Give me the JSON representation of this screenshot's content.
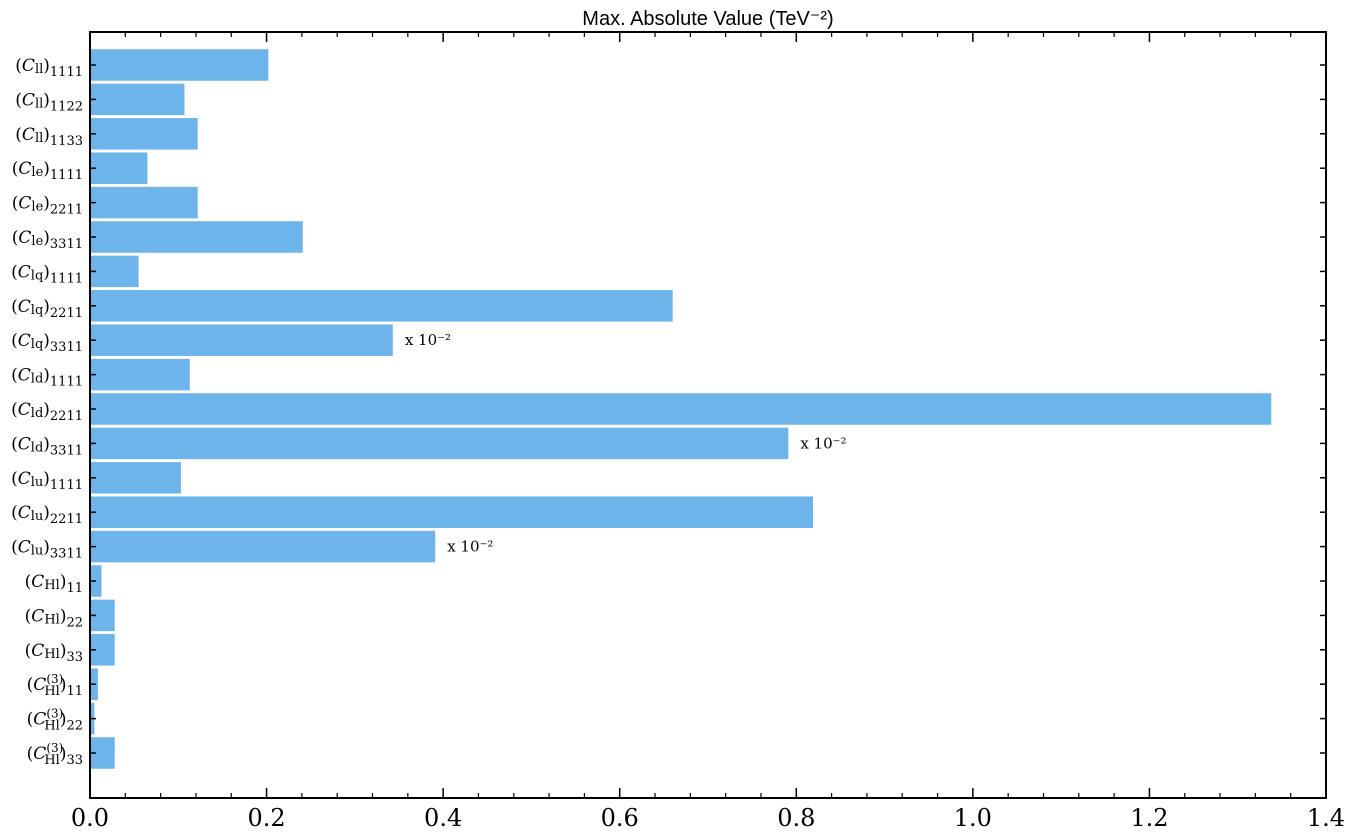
{
  "chart_data": {
    "type": "bar",
    "orientation": "horizontal",
    "title": "Max. Absolute Value (TeV⁻²)",
    "xlim": [
      0,
      1.4
    ],
    "xticks": [
      "0.0",
      "0.2",
      "0.4",
      "0.6",
      "0.8",
      "1.0",
      "1.2",
      "1.4"
    ],
    "xtick_values": [
      0.0,
      0.2,
      0.4,
      0.6,
      0.8,
      1.0,
      1.2,
      1.4
    ],
    "grid": false,
    "bar_color": "#6cb4ea",
    "categories": [
      "(C_ll)_1111",
      "(C_ll)_1122",
      "(C_ll)_1133",
      "(C_le)_1111",
      "(C_le)_2211",
      "(C_le)_3311",
      "(C_lq)_1111",
      "(C_lq)_2211",
      "(C_lq)_3311",
      "(C_ld)_1111",
      "(C_ld)_2211",
      "(C_ld)_3311",
      "(C_lu)_1111",
      "(C_lu)_2211",
      "(C_lu)_3311",
      "(C_Hl)_11",
      "(C_Hl)_22",
      "(C_Hl)_33",
      "(C_Hl^(3))_11",
      "(C_Hl^(3))_22",
      "(C_Hl^(3))_33"
    ],
    "label_parts": [
      {
        "sub": "ll",
        "sup": "",
        "idx": "1111"
      },
      {
        "sub": "ll",
        "sup": "",
        "idx": "1122"
      },
      {
        "sub": "ll",
        "sup": "",
        "idx": "1133"
      },
      {
        "sub": "le",
        "sup": "",
        "idx": "1111"
      },
      {
        "sub": "le",
        "sup": "",
        "idx": "2211"
      },
      {
        "sub": "le",
        "sup": "",
        "idx": "3311"
      },
      {
        "sub": "lq",
        "sup": "",
        "idx": "1111"
      },
      {
        "sub": "lq",
        "sup": "",
        "idx": "2211"
      },
      {
        "sub": "lq",
        "sup": "",
        "idx": "3311"
      },
      {
        "sub": "ld",
        "sup": "",
        "idx": "1111"
      },
      {
        "sub": "ld",
        "sup": "",
        "idx": "2211"
      },
      {
        "sub": "ld",
        "sup": "",
        "idx": "3311"
      },
      {
        "sub": "lu",
        "sup": "",
        "idx": "1111"
      },
      {
        "sub": "lu",
        "sup": "",
        "idx": "2211"
      },
      {
        "sub": "lu",
        "sup": "",
        "idx": "3311"
      },
      {
        "sub": "Hl",
        "sup": "",
        "idx": "11"
      },
      {
        "sub": "Hl",
        "sup": "",
        "idx": "22"
      },
      {
        "sub": "Hl",
        "sup": "",
        "idx": "33"
      },
      {
        "sub": "Hl",
        "sup": "(3)",
        "idx": "11"
      },
      {
        "sub": "Hl",
        "sup": "(3)",
        "idx": "22"
      },
      {
        "sub": "Hl",
        "sup": "(3)",
        "idx": "33"
      }
    ],
    "values": [
      0.202,
      0.107,
      0.122,
      0.065,
      0.122,
      0.241,
      0.055,
      0.66,
      0.343,
      0.113,
      1.338,
      0.791,
      0.103,
      0.819,
      0.391,
      0.013,
      0.028,
      0.028,
      0.009,
      0.005,
      0.028
    ],
    "annotations": [
      "",
      "",
      "",
      "",
      "",
      "",
      "",
      "",
      "x 10⁻²",
      "",
      "",
      "x 10⁻²",
      "",
      "",
      "x 10⁻²",
      "",
      "",
      "",
      "",
      "",
      ""
    ]
  }
}
